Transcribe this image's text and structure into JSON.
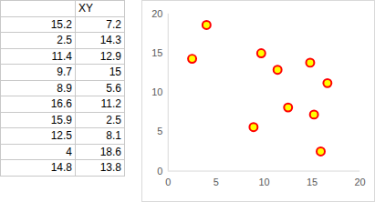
{
  "table": {
    "header": "XY",
    "rows": [
      [
        "15.2",
        "7.2"
      ],
      [
        "2.5",
        "14.3"
      ],
      [
        "11.4",
        "12.9"
      ],
      [
        "9.7",
        "15"
      ],
      [
        "8.9",
        "5.6"
      ],
      [
        "16.6",
        "11.2"
      ],
      [
        "15.9",
        "2.5"
      ],
      [
        "12.5",
        "8.1"
      ],
      [
        "4",
        "18.6"
      ],
      [
        "14.8",
        "13.8"
      ]
    ]
  },
  "chart_data": {
    "type": "scatter",
    "x": [
      15.2,
      2.5,
      11.4,
      9.7,
      8.9,
      16.6,
      15.9,
      12.5,
      4,
      14.8
    ],
    "values": [
      7.2,
      14.3,
      12.9,
      15,
      5.6,
      11.2,
      2.5,
      8.1,
      18.6,
      13.8
    ],
    "color": "#ffff00",
    "marker": "circle",
    "xlim": [
      0,
      20
    ],
    "xticks": [
      0,
      5,
      10,
      15,
      20
    ],
    "ylim": [
      0,
      20
    ],
    "yticks": [
      0,
      5,
      10,
      15,
      20
    ],
    "grid": false
  }
}
